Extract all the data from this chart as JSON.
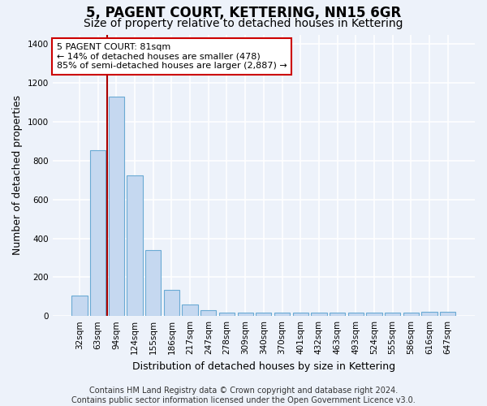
{
  "title": "5, PAGENT COURT, KETTERING, NN15 6GR",
  "subtitle": "Size of property relative to detached houses in Kettering",
  "xlabel": "Distribution of detached houses by size in Kettering",
  "ylabel": "Number of detached properties",
  "categories": [
    "32sqm",
    "63sqm",
    "94sqm",
    "124sqm",
    "155sqm",
    "186sqm",
    "217sqm",
    "247sqm",
    "278sqm",
    "309sqm",
    "340sqm",
    "370sqm",
    "401sqm",
    "432sqm",
    "463sqm",
    "493sqm",
    "524sqm",
    "555sqm",
    "586sqm",
    "616sqm",
    "647sqm"
  ],
  "bar_heights": [
    105,
    855,
    1130,
    725,
    340,
    135,
    60,
    30,
    18,
    18,
    18,
    18,
    18,
    18,
    18,
    18,
    18,
    18,
    18,
    20,
    20
  ],
  "bar_color": "#c5d8f0",
  "bar_edge_color": "#6aaad4",
  "vline_color": "#aa0000",
  "annotation_text": "5 PAGENT COURT: 81sqm\n← 14% of detached houses are smaller (478)\n85% of semi-detached houses are larger (2,887) →",
  "annotation_box_edge": "#cc0000",
  "ylim": [
    0,
    1450
  ],
  "yticks": [
    0,
    200,
    400,
    600,
    800,
    1000,
    1200,
    1400
  ],
  "footer_text": "Contains HM Land Registry data © Crown copyright and database right 2024.\nContains public sector information licensed under the Open Government Licence v3.0.",
  "background_color": "#edf2fa",
  "grid_color": "#ffffff",
  "title_fontsize": 12,
  "subtitle_fontsize": 10,
  "label_fontsize": 9,
  "tick_fontsize": 7.5,
  "footer_fontsize": 7
}
